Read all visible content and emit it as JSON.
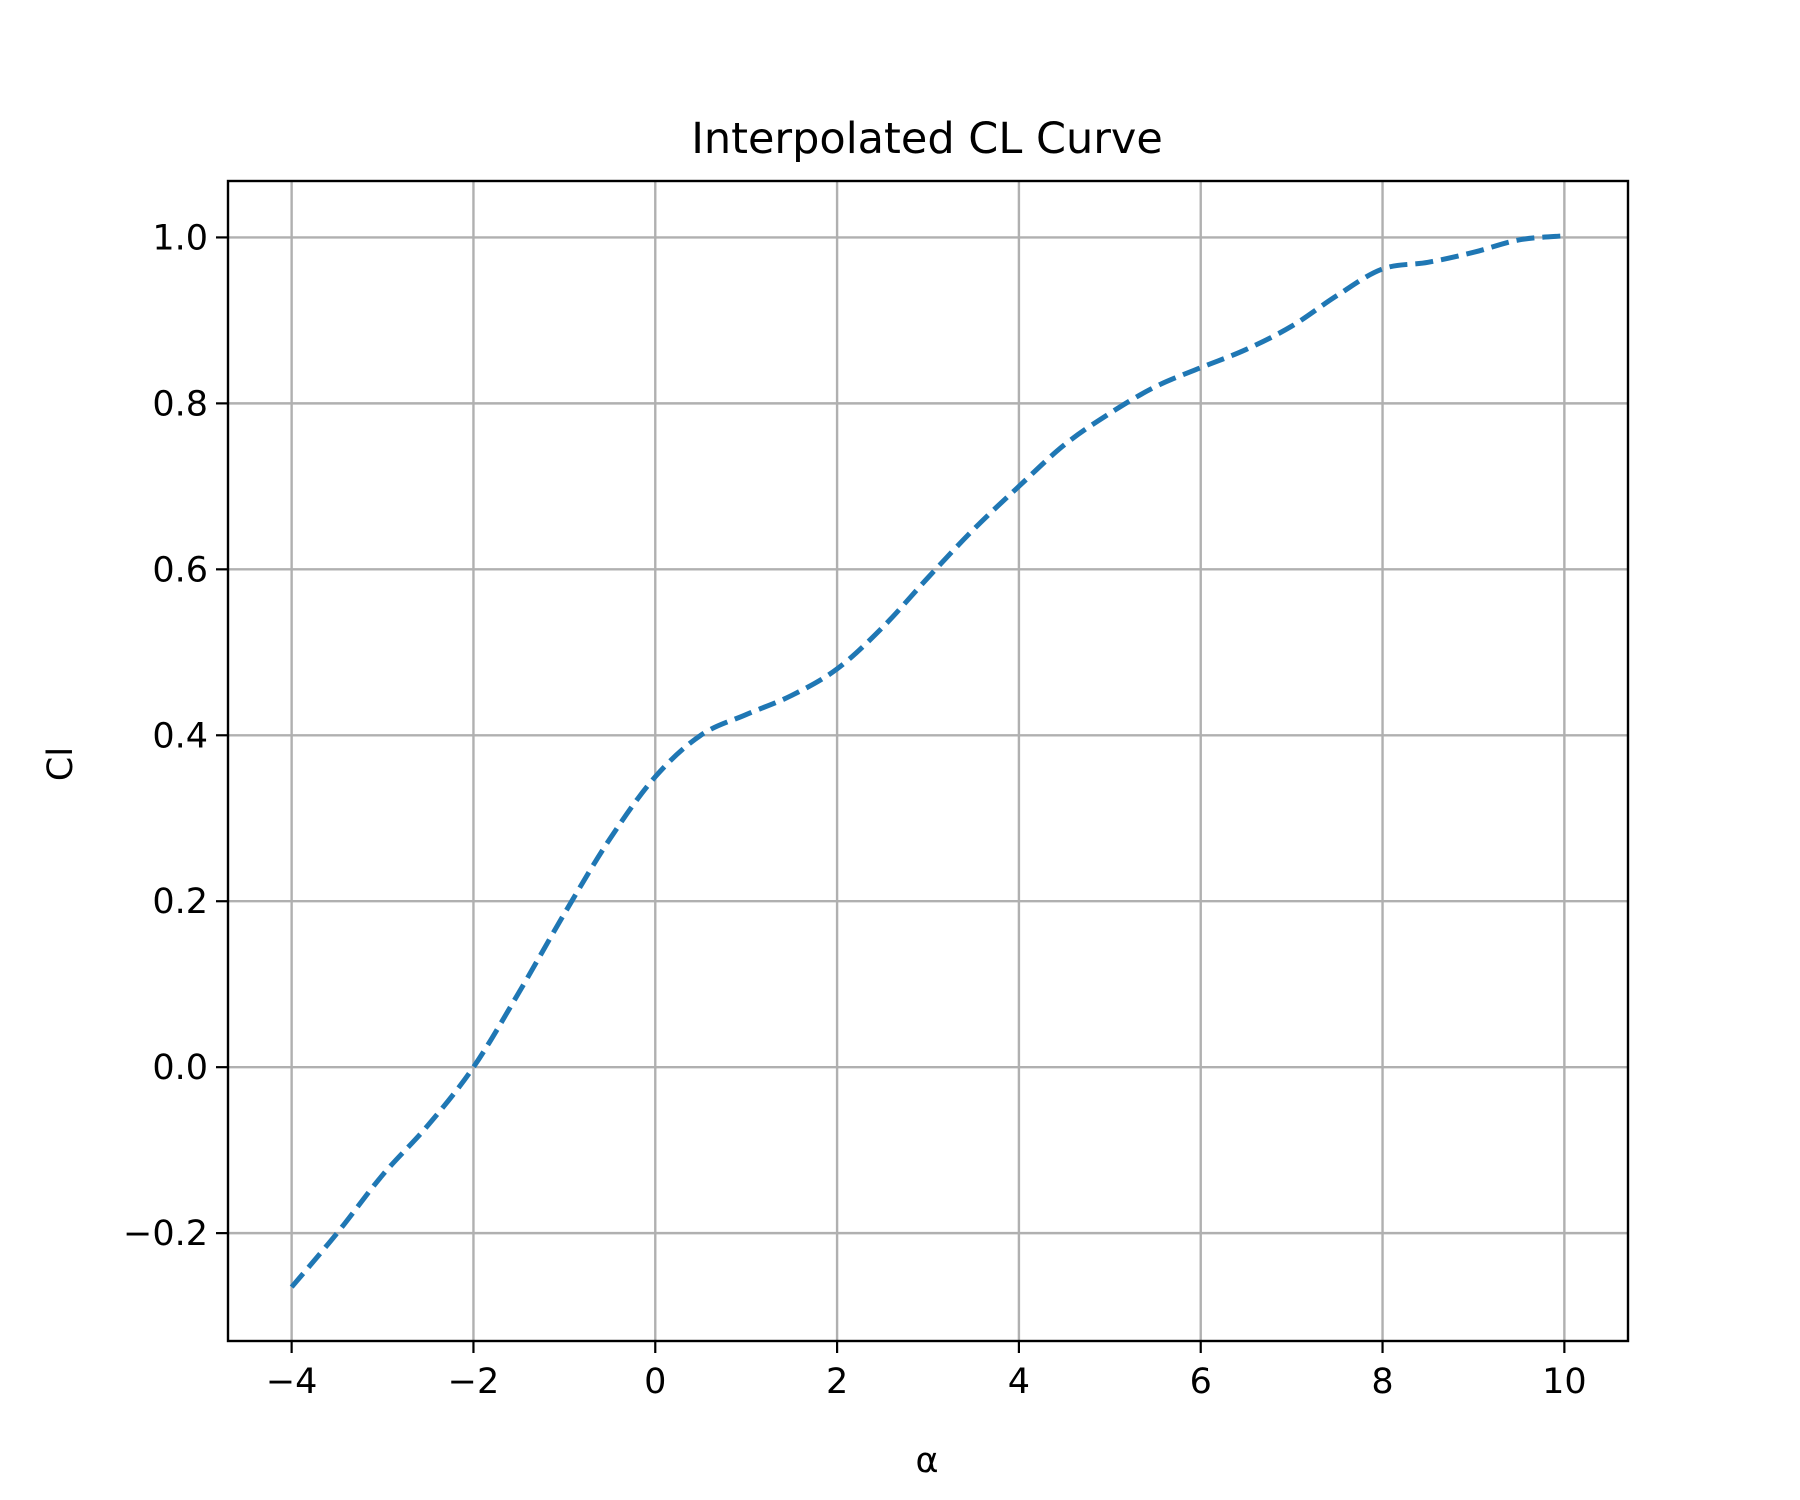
{
  "chart_data": {
    "type": "line",
    "title": "Interpolated CL Curve",
    "xlabel": "α",
    "ylabel": "Cl",
    "xlim": [
      -4.7,
      10.7
    ],
    "ylim": [
      -0.33,
      1.068
    ],
    "x_ticks": [
      -4,
      -2,
      0,
      2,
      4,
      6,
      8,
      10
    ],
    "x_tick_labels": [
      "−4",
      "−2",
      "0",
      "2",
      "4",
      "6",
      "8",
      "10"
    ],
    "y_ticks": [
      -0.2,
      0.0,
      0.2,
      0.4,
      0.6,
      0.8,
      1.0
    ],
    "y_tick_labels": [
      "−0.2",
      "0.0",
      "0.2",
      "0.4",
      "0.6",
      "0.8",
      "1.0"
    ],
    "grid": true,
    "line_style": "dashed",
    "color": "#1f77b4",
    "series": [
      {
        "x": [
          -4.0,
          -3.5,
          -3.0,
          -2.5,
          -2.0,
          -1.5,
          -1.0,
          -0.5,
          0.0,
          0.5,
          1.0,
          1.5,
          2.0,
          2.5,
          3.0,
          3.5,
          4.0,
          4.5,
          5.0,
          5.5,
          6.0,
          6.5,
          7.0,
          7.5,
          8.0,
          8.5,
          9.0,
          9.5,
          10.0
        ],
        "values": [
          -0.265,
          -0.2,
          -0.13,
          -0.07,
          0.0,
          0.09,
          0.185,
          0.275,
          0.35,
          0.4,
          0.425,
          0.448,
          0.48,
          0.53,
          0.59,
          0.648,
          0.7,
          0.75,
          0.788,
          0.82,
          0.843,
          0.865,
          0.893,
          0.93,
          0.962,
          0.97,
          0.982,
          0.997,
          1.002
        ]
      }
    ]
  }
}
